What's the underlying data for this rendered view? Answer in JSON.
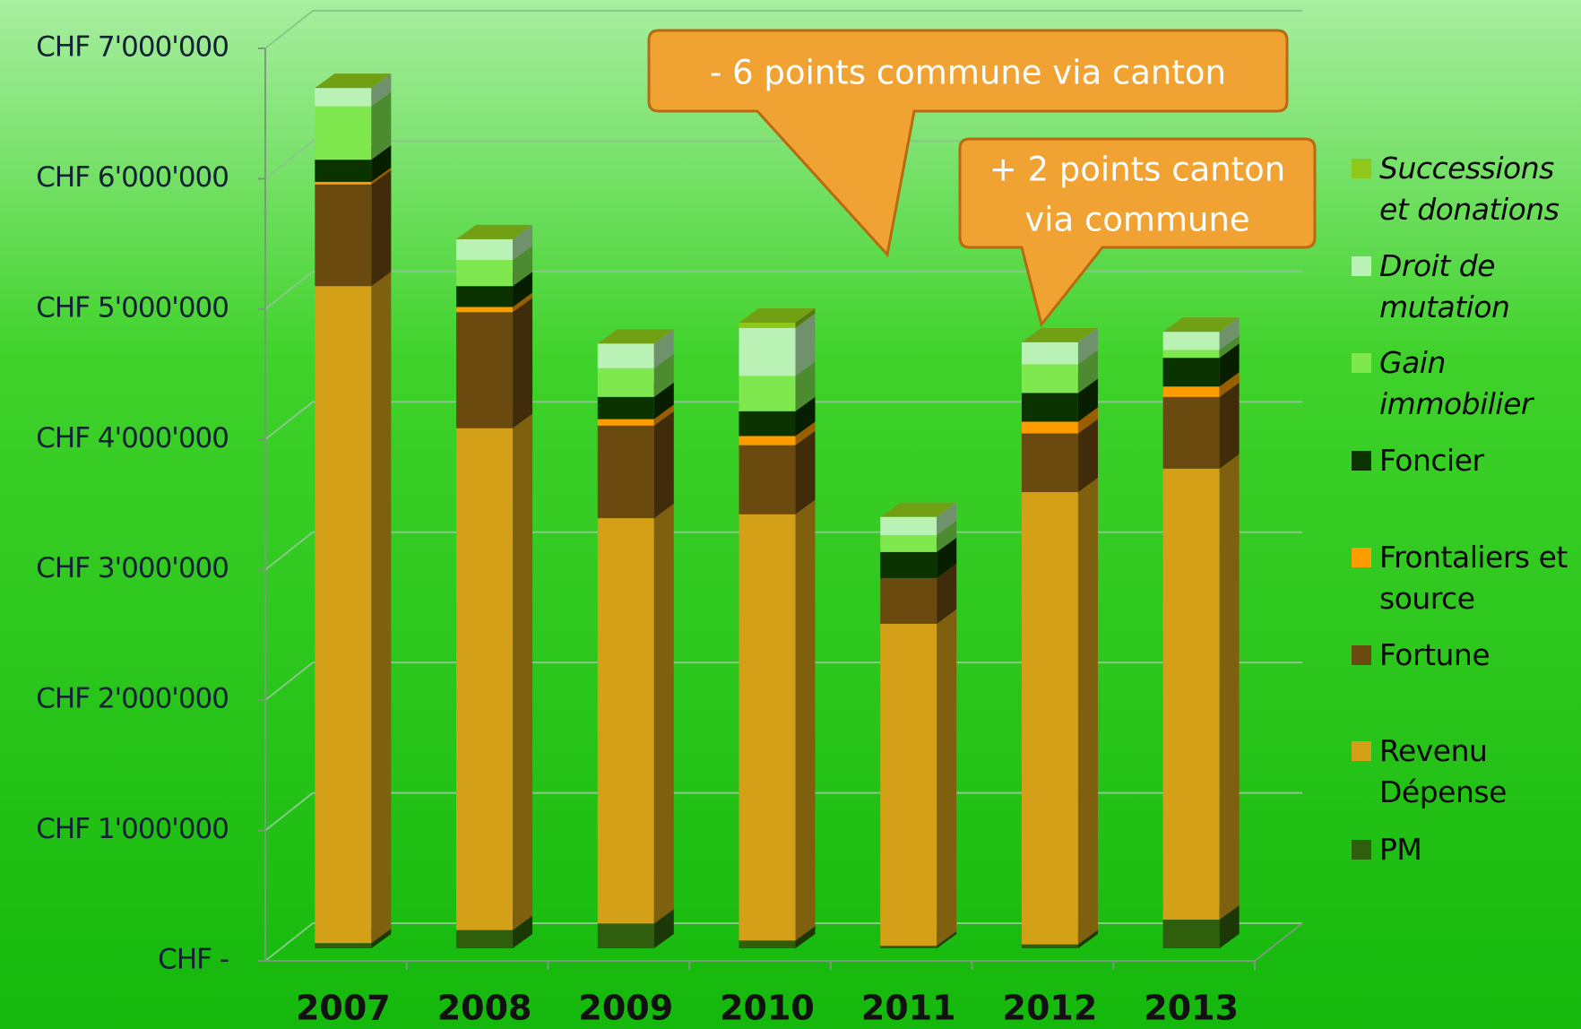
{
  "chart_data": {
    "type": "bar3d_stacked",
    "categories": [
      "2007",
      "2008",
      "2009",
      "2010",
      "2011",
      "2012",
      "2013"
    ],
    "series": [
      {
        "name": "PM",
        "color": "#2f5e0c",
        "values": [
          40000,
          140000,
          190000,
          60000,
          20000,
          30000,
          220000
        ]
      },
      {
        "name": "Revenu Dépense",
        "color": "#d4a017",
        "values": [
          5040000,
          3850000,
          3110000,
          3270000,
          2470000,
          3470000,
          3460000
        ]
      },
      {
        "name": "Fortune",
        "color": "#6b4a10",
        "values": [
          780000,
          890000,
          710000,
          530000,
          350000,
          450000,
          550000
        ]
      },
      {
        "name": "Frontaliers et source",
        "color": "#ff9c00",
        "values": [
          20000,
          40000,
          50000,
          70000,
          0,
          90000,
          80000
        ]
      },
      {
        "name": "Foncier",
        "color": "#0b3300",
        "values": [
          170000,
          160000,
          170000,
          190000,
          200000,
          220000,
          220000
        ]
      },
      {
        "name": "Gain immobilier",
        "color": "#7fe84e",
        "values": [
          410000,
          200000,
          220000,
          270000,
          130000,
          220000,
          60000
        ]
      },
      {
        "name": "Droit de mutation",
        "color": "#b9f2b4",
        "values": [
          140000,
          160000,
          190000,
          370000,
          140000,
          170000,
          140000
        ]
      },
      {
        "name": "Successions et donations",
        "color": "#8fc81a",
        "values": [
          0,
          0,
          0,
          40000,
          0,
          0,
          0
        ]
      }
    ],
    "ylim": [
      0,
      7000000
    ],
    "yticks": [
      {
        "value": 0,
        "label": "CHF -"
      },
      {
        "value": 1000000,
        "label": "CHF 1'000'000"
      },
      {
        "value": 2000000,
        "label": "CHF 2'000'000"
      },
      {
        "value": 3000000,
        "label": "CHF 3'000'000"
      },
      {
        "value": 4000000,
        "label": "CHF 4'000'000"
      },
      {
        "value": 5000000,
        "label": "CHF 5'000'000"
      },
      {
        "value": 6000000,
        "label": "CHF 6'000'000"
      },
      {
        "value": 7000000,
        "label": "CHF 7'000'000"
      }
    ],
    "grid": true,
    "legend": "right",
    "annotations": [
      {
        "lines": [
          "- 6 points commune via canton"
        ]
      },
      {
        "lines": [
          "+ 2 points canton",
          "via commune"
        ]
      }
    ]
  }
}
